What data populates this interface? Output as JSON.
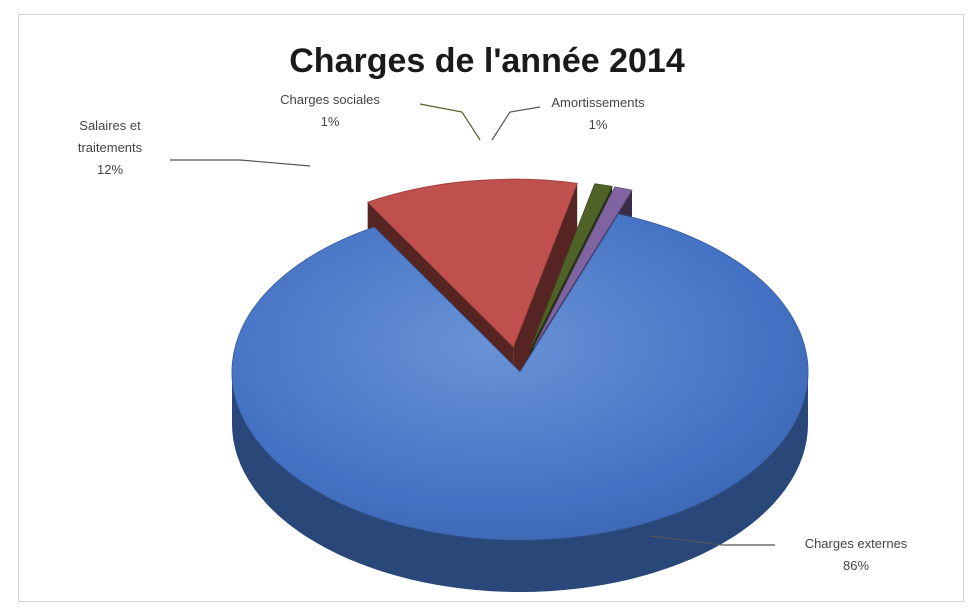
{
  "chart_data": {
    "type": "pie",
    "title": "Charges de l'année 2014",
    "style": "3d-exploded",
    "slices": [
      {
        "name": "Charges externes",
        "label_lines": [
          "Charges externes"
        ],
        "value": 86,
        "pct_label": "86%",
        "color": "#4472C4",
        "explode": false
      },
      {
        "name": "Salaires et traitements",
        "label_lines": [
          "Salaires et",
          "traitements"
        ],
        "value": 12,
        "pct_label": "12%",
        "color": "#C0504D",
        "explode": true
      },
      {
        "name": "Charges sociales",
        "label_lines": [
          "Charges sociales"
        ],
        "value": 1,
        "pct_label": "1%",
        "color": "#4F6228",
        "explode": true
      },
      {
        "name": "Amortissements",
        "label_lines": [
          "Amortissements"
        ],
        "value": 1,
        "pct_label": "1%",
        "color": "#8064A2",
        "explode": true
      }
    ]
  }
}
